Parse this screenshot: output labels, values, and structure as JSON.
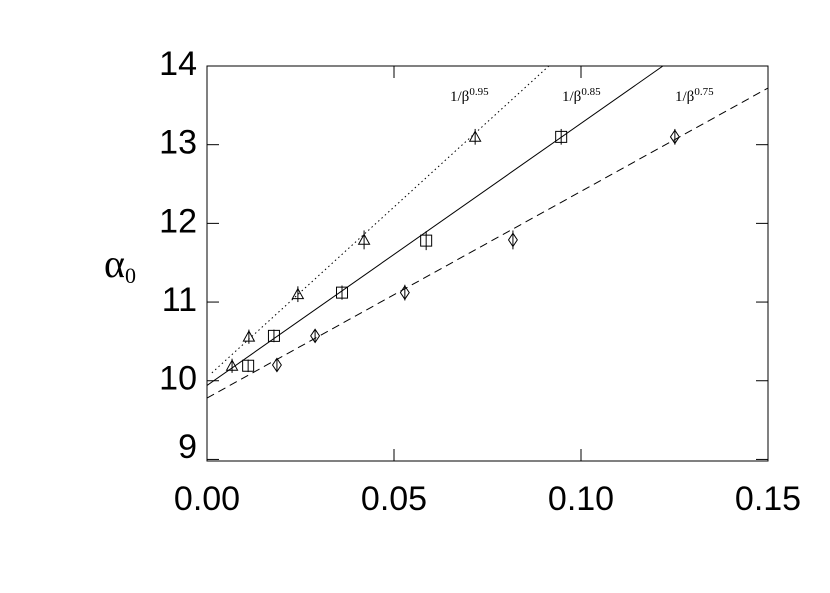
{
  "chart_data": {
    "type": "scatter",
    "y_label": {
      "base": "α",
      "sub": "0"
    },
    "xlim": [
      0,
      0.15
    ],
    "ylim": [
      8.98,
      14
    ],
    "xticks": [
      {
        "value": 0,
        "label": "0.00"
      },
      {
        "value": 0.05,
        "label": "0.05"
      },
      {
        "value": 0.1,
        "label": "0.10"
      },
      {
        "value": 0.15,
        "label": "0.15"
      }
    ],
    "yticks": [
      9,
      10,
      11,
      12,
      13,
      14
    ],
    "series": [
      {
        "marker": "triangle",
        "color": "#000",
        "fit_label": {
          "base": "1/β",
          "exp": "0.95"
        },
        "x": [
          0.0067,
          0.0112,
          0.0243,
          0.042,
          0.0717
        ],
        "y": [
          10.19,
          10.56,
          11.1,
          11.79,
          13.1
        ],
        "errors": [
          0.09,
          0.09,
          0.1,
          0.12,
          0.1
        ],
        "fit": {
          "dash": "dotted",
          "x": [
            0.0013,
            0.0914
          ],
          "y": [
            10.1,
            14
          ]
        }
      },
      {
        "marker": "square",
        "color": "#000",
        "fit_label": {
          "base": "1/β",
          "exp": "0.85"
        },
        "x": [
          0.011,
          0.0179,
          0.0361,
          0.0586,
          0.0947
        ],
        "y": [
          10.19,
          10.57,
          11.12,
          11.78,
          13.1
        ],
        "errors": [
          0.08,
          0.08,
          0.09,
          0.12,
          0.1
        ],
        "fit": {
          "dash": "solid",
          "x": [
            0,
            0.1219
          ],
          "y": [
            9.94,
            14
          ]
        }
      },
      {
        "marker": "diamond",
        "color": "#000",
        "fit_label": {
          "base": "1/β",
          "exp": "0.75"
        },
        "x": [
          0.0187,
          0.0289,
          0.0529,
          0.0818,
          0.1251
        ],
        "y": [
          10.2,
          10.57,
          11.12,
          11.79,
          13.1
        ],
        "errors": [
          0.08,
          0.08,
          0.1,
          0.12,
          0.1
        ],
        "fit": {
          "dash": "dashed",
          "x": [
            0,
            0.15
          ],
          "y": [
            9.78,
            13.72
          ]
        }
      }
    ]
  }
}
